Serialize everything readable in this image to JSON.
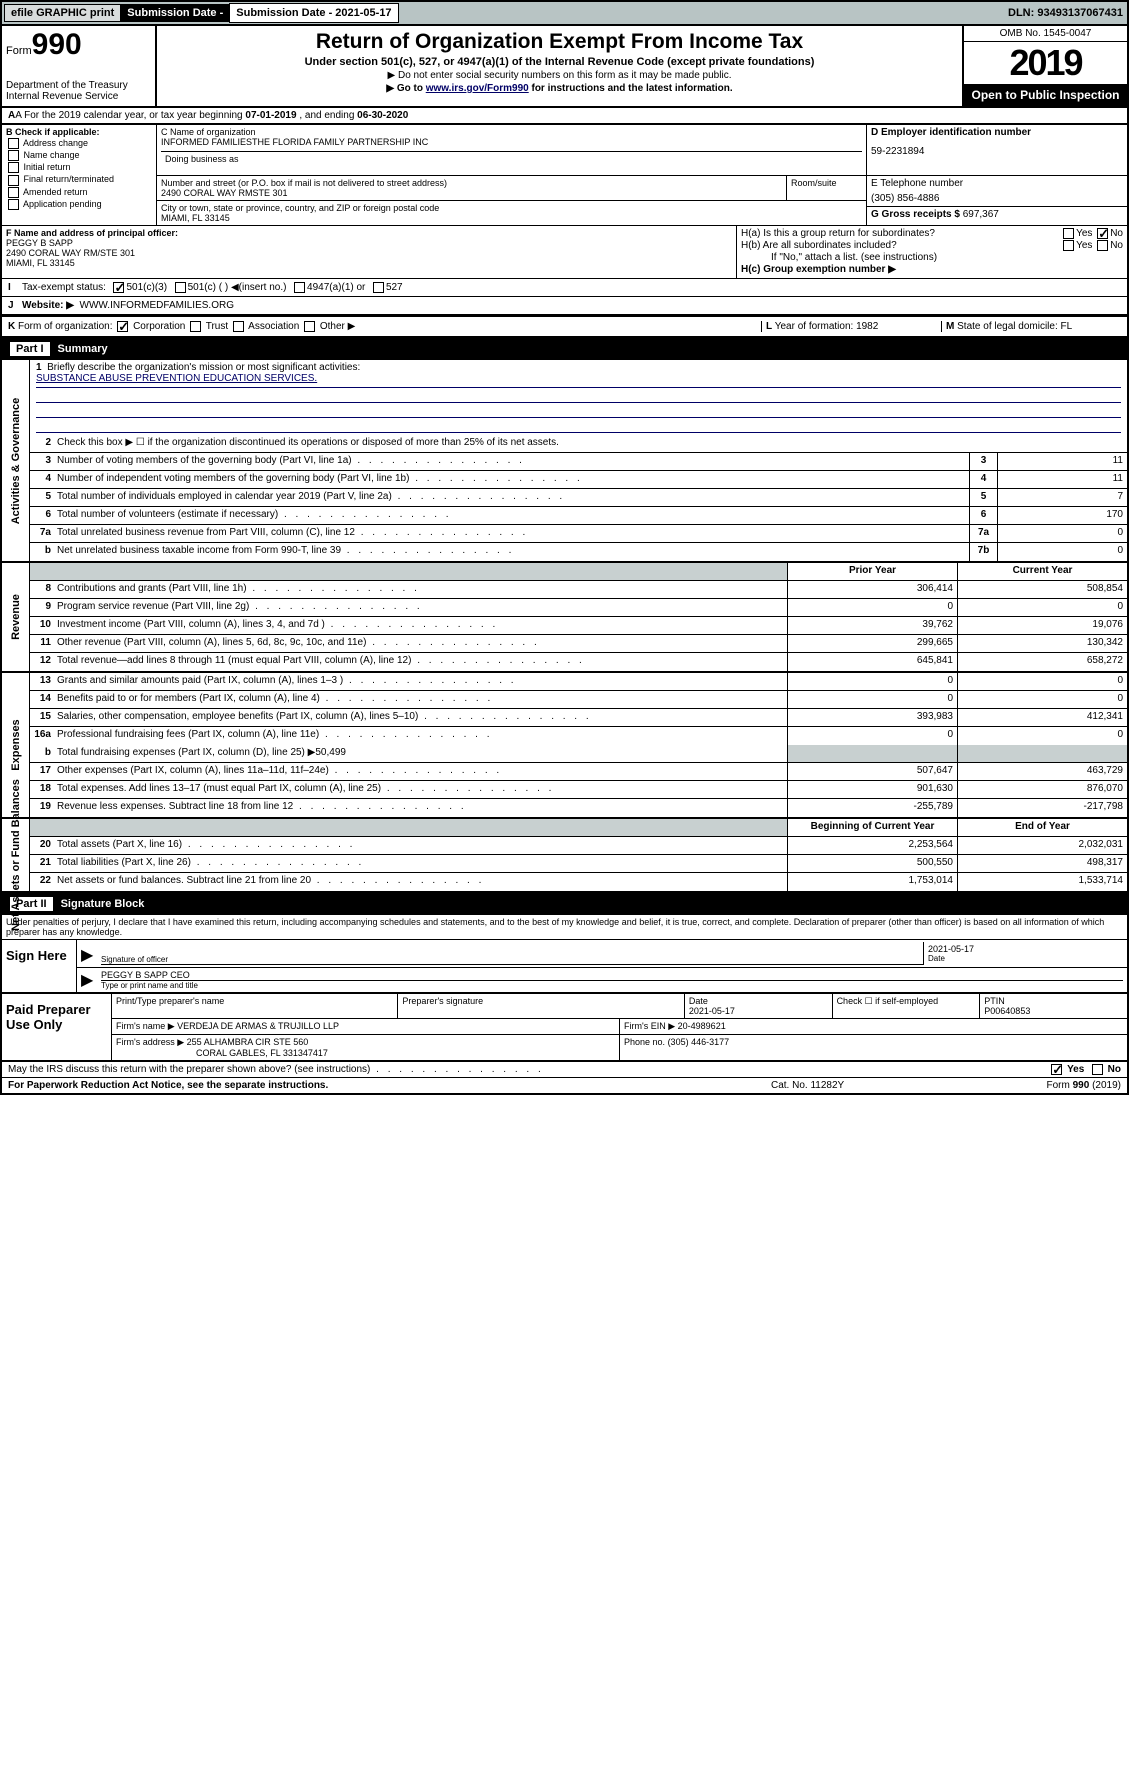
{
  "topbar": {
    "efile": "efile GRAPHIC print",
    "subdate_label": "Submission Date - 2021-05-17",
    "dln": "DLN: 93493137067431"
  },
  "header": {
    "form_label": "Form",
    "form_num": "990",
    "dept": "Department of the Treasury",
    "irs": "Internal Revenue Service",
    "title": "Return of Organization Exempt From Income Tax",
    "sub": "Under section 501(c), 527, or 4947(a)(1) of the Internal Revenue Code (except private foundations)",
    "note1": "▶ Do not enter social security numbers on this form as it may be made public.",
    "note2_pre": "▶ Go to ",
    "note2_link": "www.irs.gov/Form990",
    "note2_post": " for instructions and the latest information.",
    "omb": "OMB No. 1545-0047",
    "year": "2019",
    "open": "Open to Public Inspection"
  },
  "rowA": {
    "text_pre": "A For the 2019 calendar year, or tax year beginning ",
    "begin": "07-01-2019",
    "mid": " , and ending ",
    "end": "06-30-2020"
  },
  "B": {
    "label": "B Check if applicable:",
    "items": [
      "Address change",
      "Name change",
      "Initial return",
      "Final return/terminated",
      "Amended return",
      "Application pending"
    ]
  },
  "C": {
    "name_label": "C Name of organization",
    "name": "INFORMED FAMILIESTHE FLORIDA FAMILY PARTNERSHIP INC",
    "dba_label": "Doing business as",
    "street_label": "Number and street (or P.O. box if mail is not delivered to street address)",
    "street": "2490 CORAL WAY RMSTE 301",
    "room_label": "Room/suite",
    "city_label": "City or town, state or province, country, and ZIP or foreign postal code",
    "city": "MIAMI, FL  33145"
  },
  "D": {
    "label": "D Employer identification number",
    "val": "59-2231894"
  },
  "E": {
    "label": "E Telephone number",
    "val": "(305) 856-4886"
  },
  "G": {
    "label": "G Gross receipts $ ",
    "val": "697,367"
  },
  "F": {
    "label": "F  Name and address of principal officer:",
    "name": "PEGGY B SAPP",
    "addr1": "2490 CORAL WAY RM/STE 301",
    "addr2": "MIAMI, FL  33145"
  },
  "H": {
    "a": "H(a)  Is this a group return for subordinates?",
    "b": "H(b)  Are all subordinates included?",
    "bnote": "If \"No,\" attach a list. (see instructions)",
    "c": "H(c)  Group exemption number ▶",
    "yes": "Yes",
    "no": "No"
  },
  "I": {
    "label": "I",
    "txt": "Tax-exempt status:",
    "opts": [
      "501(c)(3)",
      "501(c) (  ) ◀(insert no.)",
      "4947(a)(1) or",
      "527"
    ]
  },
  "J": {
    "label": "J",
    "txt": "Website: ▶",
    "val": "WWW.INFORMEDFAMILIES.ORG"
  },
  "K": {
    "label": "K",
    "txt": "Form of organization:",
    "opts": [
      "Corporation",
      "Trust",
      "Association",
      "Other ▶"
    ]
  },
  "L": {
    "label": "L",
    "txt": "Year of formation: ",
    "val": "1982"
  },
  "M": {
    "label": "M",
    "txt": "State of legal domicile: ",
    "val": "FL"
  },
  "part1": {
    "num": "Part I",
    "title": "Summary"
  },
  "summary": {
    "q1": "Briefly describe the organization's mission or most significant activities:",
    "mission": "SUBSTANCE ABUSE PREVENTION EDUCATION SERVICES.",
    "q2": "Check this box ▶ ☐  if the organization discontinued its operations or disposed of more than 25% of its net assets.",
    "lines": [
      {
        "n": "3",
        "t": "Number of voting members of the governing body (Part VI, line 1a)",
        "box": "3",
        "v": "11"
      },
      {
        "n": "4",
        "t": "Number of independent voting members of the governing body (Part VI, line 1b)",
        "box": "4",
        "v": "11"
      },
      {
        "n": "5",
        "t": "Total number of individuals employed in calendar year 2019 (Part V, line 2a)",
        "box": "5",
        "v": "7"
      },
      {
        "n": "6",
        "t": "Total number of volunteers (estimate if necessary)",
        "box": "6",
        "v": "170"
      },
      {
        "n": "7a",
        "t": "Total unrelated business revenue from Part VIII, column (C), line 12",
        "box": "7a",
        "v": "0"
      },
      {
        "n": "b",
        "t": "Net unrelated business taxable income from Form 990-T, line 39",
        "box": "7b",
        "v": "0"
      }
    ]
  },
  "revenue": {
    "hdr_prior": "Prior Year",
    "hdr_curr": "Current Year",
    "lines": [
      {
        "n": "8",
        "t": "Contributions and grants (Part VIII, line 1h)",
        "p": "306,414",
        "c": "508,854"
      },
      {
        "n": "9",
        "t": "Program service revenue (Part VIII, line 2g)",
        "p": "0",
        "c": "0"
      },
      {
        "n": "10",
        "t": "Investment income (Part VIII, column (A), lines 3, 4, and 7d )",
        "p": "39,762",
        "c": "19,076"
      },
      {
        "n": "11",
        "t": "Other revenue (Part VIII, column (A), lines 5, 6d, 8c, 9c, 10c, and 11e)",
        "p": "299,665",
        "c": "130,342"
      },
      {
        "n": "12",
        "t": "Total revenue—add lines 8 through 11 (must equal Part VIII, column (A), line 12)",
        "p": "645,841",
        "c": "658,272"
      }
    ]
  },
  "expenses": {
    "lines": [
      {
        "n": "13",
        "t": "Grants and similar amounts paid (Part IX, column (A), lines 1–3 )",
        "p": "0",
        "c": "0"
      },
      {
        "n": "14",
        "t": "Benefits paid to or for members (Part IX, column (A), line 4)",
        "p": "0",
        "c": "0"
      },
      {
        "n": "15",
        "t": "Salaries, other compensation, employee benefits (Part IX, column (A), lines 5–10)",
        "p": "393,983",
        "c": "412,341"
      },
      {
        "n": "16a",
        "t": "Professional fundraising fees (Part IX, column (A), line 11e)",
        "p": "0",
        "c": "0"
      }
    ],
    "line_b": {
      "n": "b",
      "t": "Total fundraising expenses (Part IX, column (D), line 25) ▶50,499"
    },
    "lines2": [
      {
        "n": "17",
        "t": "Other expenses (Part IX, column (A), lines 11a–11d, 11f–24e)",
        "p": "507,647",
        "c": "463,729"
      },
      {
        "n": "18",
        "t": "Total expenses. Add lines 13–17 (must equal Part IX, column (A), line 25)",
        "p": "901,630",
        "c": "876,070"
      },
      {
        "n": "19",
        "t": "Revenue less expenses. Subtract line 18 from line 12",
        "p": "-255,789",
        "c": "-217,798"
      }
    ]
  },
  "netassets": {
    "hdr_beg": "Beginning of Current Year",
    "hdr_end": "End of Year",
    "lines": [
      {
        "n": "20",
        "t": "Total assets (Part X, line 16)",
        "p": "2,253,564",
        "c": "2,032,031"
      },
      {
        "n": "21",
        "t": "Total liabilities (Part X, line 26)",
        "p": "500,550",
        "c": "498,317"
      },
      {
        "n": "22",
        "t": "Net assets or fund balances. Subtract line 21 from line 20",
        "p": "1,753,014",
        "c": "1,533,714"
      }
    ]
  },
  "part2": {
    "num": "Part II",
    "title": "Signature Block"
  },
  "sig": {
    "decl": "Under penalties of perjury, I declare that I have examined this return, including accompanying schedules and statements, and to the best of my knowledge and belief, it is true, correct, and complete. Declaration of preparer (other than officer) is based on all information of which preparer has any knowledge.",
    "sign_here": "Sign Here",
    "sig_of_officer": "Signature of officer",
    "date": "Date",
    "date_val": "2021-05-17",
    "name_title": "PEGGY B SAPP CEO",
    "type_name": "Type or print name and title"
  },
  "paid": {
    "label": "Paid Preparer Use Only",
    "h1": "Print/Type preparer's name",
    "h2": "Preparer's signature",
    "h3": "Date",
    "h3v": "2021-05-17",
    "h4": "Check ☐ if self-employed",
    "h5": "PTIN",
    "h5v": "P00640853",
    "firm_name": "Firm's name    ▶",
    "firm_name_v": "VERDEJA DE ARMAS & TRUJILLO LLP",
    "firm_ein": "Firm's EIN ▶",
    "firm_ein_v": "20-4989621",
    "firm_addr": "Firm's address ▶",
    "firm_addr_v1": "255 ALHAMBRA CIR STE 560",
    "firm_addr_v2": "CORAL GABLES, FL  331347417",
    "phone": "Phone no.",
    "phone_v": "(305) 446-3177"
  },
  "discuss": {
    "txt": "May the IRS discuss this return with the preparer shown above? (see instructions)",
    "yes": "Yes",
    "no": "No"
  },
  "footer": {
    "left": "For Paperwork Reduction Act Notice, see the separate instructions.",
    "mid": "Cat. No. 11282Y",
    "right": "Form 990 (2019)"
  },
  "sidelabels": {
    "ag": "Activities & Governance",
    "rev": "Revenue",
    "exp": "Expenses",
    "na": "Net Assets or Fund Balances"
  }
}
